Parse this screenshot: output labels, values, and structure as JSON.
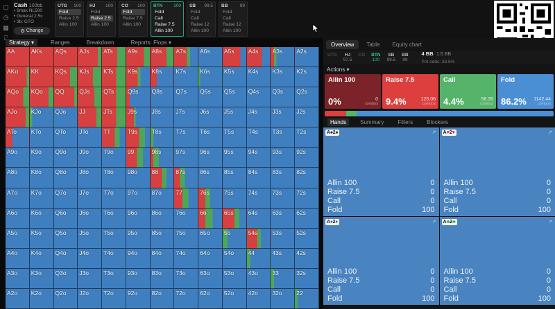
{
  "sidebar": {
    "icons": [
      {
        "name": "library-icon",
        "glyph": "▢"
      },
      {
        "name": "history-icon",
        "glyph": "◷"
      },
      {
        "name": "grid-icon",
        "glyph": "▦"
      },
      {
        "name": "practice-icon",
        "glyph": "⌸"
      },
      {
        "name": "text-cursor-icon",
        "glyph": "Ⅰ"
      }
    ]
  },
  "top_bar": {
    "settings": {
      "title": "Cash",
      "subtitle": "100bb",
      "lines": [
        "6max NL500",
        "General 2.5x",
        "3b: GTO"
      ],
      "change_label": "Change",
      "gear": "⚙"
    },
    "positions": [
      {
        "pos": "UTG",
        "stack": "100",
        "active": false,
        "actions": [
          {
            "label": "Fold",
            "sel": true
          },
          {
            "label": "Raise 2.5",
            "sel": false
          },
          {
            "label": "Allin 100",
            "sel": false
          }
        ]
      },
      {
        "pos": "HJ",
        "stack": "100",
        "active": false,
        "actions": [
          {
            "label": "Fold",
            "sel": false
          },
          {
            "label": "Raise 2.5",
            "sel": true
          },
          {
            "label": "Allin 100",
            "sel": false
          }
        ]
      },
      {
        "pos": "CO",
        "stack": "100",
        "active": false,
        "actions": [
          {
            "label": "Fold",
            "sel": true
          },
          {
            "label": "Raise 7.5",
            "sel": false
          },
          {
            "label": "Allin 100",
            "sel": false
          }
        ]
      },
      {
        "pos": "BTN",
        "stack": "100",
        "active": true,
        "actions": [
          {
            "label": "Fold",
            "sel": false
          },
          {
            "label": "Call",
            "sel": false
          },
          {
            "label": "Raise 7.5",
            "sel": false
          },
          {
            "label": "Allin 100",
            "sel": false
          }
        ]
      },
      {
        "pos": "SB",
        "stack": "99.5",
        "active": false,
        "actions": [
          {
            "label": "Fold",
            "sel": false
          },
          {
            "label": "Call",
            "sel": false
          },
          {
            "label": "Raise 12",
            "sel": false
          },
          {
            "label": "Allin 100",
            "sel": false
          }
        ]
      },
      {
        "pos": "BB",
        "stack": "99",
        "active": false,
        "actions": [
          {
            "label": "Fold",
            "sel": false
          },
          {
            "label": "Call",
            "sel": false
          },
          {
            "label": "Raise 12",
            "sel": false
          },
          {
            "label": "Allin 100",
            "sel": false
          }
        ]
      }
    ]
  },
  "left_tabs": [
    {
      "label": "Strategy ▾",
      "sel": true
    },
    {
      "label": "Ranges",
      "sel": false
    },
    {
      "label": "Breakdown",
      "sel": false
    },
    {
      "label": "Reports: Flops ▾",
      "sel": false
    }
  ],
  "matrix": {
    "colors": {
      "raise": "#d64040",
      "call": "#4ea758",
      "fold": "#3f7fc0"
    },
    "cells": [
      [
        [
          "AA",
          100,
          0
        ],
        [
          "AKs",
          100,
          0
        ],
        [
          "AQs",
          100,
          0
        ],
        [
          "AJs",
          85,
          15
        ],
        [
          "ATs",
          65,
          35
        ],
        [
          "A9s",
          75,
          25
        ],
        [
          "A8s",
          70,
          30
        ],
        [
          "A7s",
          55,
          12
        ],
        [
          "A6s",
          0,
          0
        ],
        [
          "A5s",
          75,
          0
        ],
        [
          "A4s",
          65,
          0
        ],
        [
          "A3s",
          15,
          10
        ],
        [
          "A2s",
          0,
          0
        ]
      ],
      [
        [
          "AKo",
          90,
          10
        ],
        [
          "KK",
          100,
          0
        ],
        [
          "KQs",
          70,
          30
        ],
        [
          "KJs",
          65,
          35
        ],
        [
          "KTs",
          60,
          40
        ],
        [
          "K9s",
          48,
          12
        ],
        [
          "K8s",
          28,
          0
        ],
        [
          "K7s",
          0,
          0
        ],
        [
          "K6s",
          0,
          8
        ],
        [
          "K5s",
          0,
          0
        ],
        [
          "K4s",
          0,
          0
        ],
        [
          "K3s",
          0,
          0
        ],
        [
          "K2s",
          0,
          0
        ]
      ],
      [
        [
          "AQo",
          75,
          25
        ],
        [
          "KQo",
          80,
          20
        ],
        [
          "QQ",
          88,
          12
        ],
        [
          "QJs",
          70,
          30
        ],
        [
          "QTs",
          60,
          40
        ],
        [
          "Q9s",
          15,
          0
        ],
        [
          "Q8s",
          0,
          0
        ],
        [
          "Q7s",
          0,
          0
        ],
        [
          "Q6s",
          0,
          0
        ],
        [
          "Q5s",
          0,
          0
        ],
        [
          "Q4s",
          0,
          0
        ],
        [
          "Q3s",
          0,
          0
        ],
        [
          "Q2s",
          0,
          0
        ]
      ],
      [
        [
          "AJo",
          85,
          15
        ],
        [
          "KJo",
          0,
          10
        ],
        [
          "QJo",
          0,
          0
        ],
        [
          "JJ",
          80,
          20
        ],
        [
          "JTs",
          60,
          40
        ],
        [
          "J9s",
          33,
          7
        ],
        [
          "J8s",
          0,
          0
        ],
        [
          "J7s",
          0,
          0
        ],
        [
          "J6s",
          0,
          0
        ],
        [
          "J5s",
          0,
          0
        ],
        [
          "J4s",
          0,
          0
        ],
        [
          "J3s",
          0,
          0
        ],
        [
          "J2s",
          0,
          0
        ]
      ],
      [
        [
          "ATo",
          30,
          0
        ],
        [
          "KTo",
          0,
          0
        ],
        [
          "QTo",
          0,
          0
        ],
        [
          "JTo",
          0,
          0
        ],
        [
          "TT",
          55,
          20
        ],
        [
          "T9s",
          55,
          25
        ],
        [
          "T8s",
          0,
          12
        ],
        [
          "T7s",
          0,
          0
        ],
        [
          "T6s",
          0,
          0
        ],
        [
          "T5s",
          0,
          0
        ],
        [
          "T4s",
          0,
          0
        ],
        [
          "T3s",
          0,
          0
        ],
        [
          "T2s",
          0,
          0
        ]
      ],
      [
        [
          "A9o",
          0,
          0
        ],
        [
          "K9o",
          0,
          0
        ],
        [
          "Q9o",
          0,
          0
        ],
        [
          "J9o",
          0,
          0
        ],
        [
          "T9o",
          0,
          0
        ],
        [
          "99",
          45,
          25
        ],
        [
          "98s",
          12,
          25
        ],
        [
          "97s",
          0,
          0
        ],
        [
          "96s",
          0,
          0
        ],
        [
          "95s",
          0,
          0
        ],
        [
          "94s",
          0,
          0
        ],
        [
          "93s",
          0,
          0
        ],
        [
          "92s",
          0,
          0
        ]
      ],
      [
        [
          "A8o",
          0,
          0
        ],
        [
          "K8o",
          0,
          0
        ],
        [
          "Q8o",
          0,
          0
        ],
        [
          "J8o",
          0,
          0
        ],
        [
          "T8o",
          0,
          0
        ],
        [
          "98o",
          0,
          0
        ],
        [
          "88",
          50,
          20
        ],
        [
          "87s",
          25,
          20
        ],
        [
          "86s",
          0,
          0
        ],
        [
          "85s",
          0,
          0
        ],
        [
          "84s",
          0,
          0
        ],
        [
          "83s",
          0,
          0
        ],
        [
          "82s",
          0,
          0
        ]
      ],
      [
        [
          "A7o",
          0,
          0
        ],
        [
          "K7o",
          0,
          0
        ],
        [
          "Q7o",
          0,
          0
        ],
        [
          "J7o",
          0,
          0
        ],
        [
          "T7o",
          0,
          0
        ],
        [
          "97o",
          0,
          0
        ],
        [
          "87o",
          0,
          0
        ],
        [
          "77",
          35,
          25
        ],
        [
          "76s",
          30,
          20
        ],
        [
          "75s",
          0,
          0
        ],
        [
          "74s",
          0,
          0
        ],
        [
          "73s",
          0,
          0
        ],
        [
          "72s",
          0,
          0
        ]
      ],
      [
        [
          "A6o",
          0,
          0
        ],
        [
          "K6o",
          0,
          0
        ],
        [
          "Q6o",
          0,
          0
        ],
        [
          "J6o",
          0,
          0
        ],
        [
          "T6o",
          0,
          0
        ],
        [
          "96o",
          0,
          0
        ],
        [
          "86o",
          0,
          0
        ],
        [
          "76o",
          0,
          0
        ],
        [
          "66",
          30,
          30
        ],
        [
          "65s",
          50,
          20
        ],
        [
          "64s",
          0,
          0
        ],
        [
          "63s",
          0,
          0
        ],
        [
          "62s",
          0,
          0
        ]
      ],
      [
        [
          "A5o",
          0,
          0
        ],
        [
          "K5o",
          0,
          0
        ],
        [
          "Q5o",
          0,
          0
        ],
        [
          "J5o",
          0,
          0
        ],
        [
          "T5o",
          0,
          0
        ],
        [
          "95o",
          0,
          0
        ],
        [
          "85o",
          0,
          0
        ],
        [
          "75o",
          0,
          0
        ],
        [
          "65o",
          0,
          0
        ],
        [
          "55",
          0,
          20
        ],
        [
          "54s",
          45,
          15
        ],
        [
          "53s",
          0,
          0
        ],
        [
          "52s",
          0,
          0
        ]
      ],
      [
        [
          "A4o",
          0,
          0
        ],
        [
          "K4o",
          0,
          0
        ],
        [
          "Q4o",
          0,
          0
        ],
        [
          "J4o",
          0,
          0
        ],
        [
          "T4o",
          0,
          0
        ],
        [
          "94o",
          0,
          0
        ],
        [
          "84o",
          0,
          0
        ],
        [
          "74o",
          0,
          0
        ],
        [
          "64o",
          0,
          0
        ],
        [
          "54o",
          0,
          0
        ],
        [
          "44",
          0,
          15
        ],
        [
          "43s",
          0,
          0
        ],
        [
          "42s",
          0,
          0
        ]
      ],
      [
        [
          "A3o",
          0,
          0
        ],
        [
          "K3o",
          0,
          0
        ],
        [
          "Q3o",
          0,
          0
        ],
        [
          "J3o",
          0,
          0
        ],
        [
          "T3o",
          0,
          0
        ],
        [
          "93o",
          0,
          0
        ],
        [
          "83o",
          0,
          0
        ],
        [
          "73o",
          0,
          0
        ],
        [
          "63o",
          0,
          0
        ],
        [
          "53o",
          0,
          0
        ],
        [
          "43o",
          0,
          0
        ],
        [
          "33",
          0,
          15
        ],
        [
          "32s",
          0,
          0
        ]
      ],
      [
        [
          "A2o",
          0,
          0
        ],
        [
          "K2o",
          0,
          0
        ],
        [
          "Q2o",
          0,
          0
        ],
        [
          "J2o",
          0,
          0
        ],
        [
          "T2o",
          0,
          0
        ],
        [
          "92o",
          0,
          0
        ],
        [
          "82o",
          0,
          0
        ],
        [
          "72o",
          0,
          0
        ],
        [
          "62o",
          0,
          0
        ],
        [
          "52o",
          0,
          0
        ],
        [
          "42o",
          0,
          0
        ],
        [
          "32o",
          0,
          0
        ],
        [
          "22",
          0,
          12
        ]
      ]
    ]
  },
  "right": {
    "tabs": [
      {
        "label": "Overview",
        "sel": true
      },
      {
        "label": "Table",
        "sel": false
      },
      {
        "label": "Equity chart",
        "sel": false
      }
    ],
    "positions": [
      {
        "pos": "UTG",
        "value": "",
        "dim": true,
        "on": false
      },
      {
        "pos": "HJ",
        "value": "97.5",
        "dim": false,
        "on": false
      },
      {
        "pos": "CO",
        "value": "",
        "dim": true,
        "on": false
      },
      {
        "pos": "BTN",
        "value": "100",
        "dim": false,
        "on": true
      },
      {
        "pos": "SB",
        "value": "99.5",
        "dim": false,
        "on": false
      },
      {
        "pos": "BB",
        "value": "99",
        "dim": false,
        "on": false
      }
    ],
    "pot": {
      "main": "4 BB",
      "sub": "1.5 BB",
      "odds_label": "Pot odds:",
      "odds": "38.5%"
    },
    "actions_label": "Actions ▾",
    "combos_suffix": "combos",
    "action_cards": [
      {
        "label": "Allin 100",
        "pct": "0%",
        "combos": "0",
        "color": "#7b2328"
      },
      {
        "label": "Raise 7.5",
        "pct": "9.4%",
        "combos": "125.06",
        "color": "#dd3e3e"
      },
      {
        "label": "Call",
        "pct": "4.4%",
        "combos": "58.35",
        "color": "#55b36a"
      },
      {
        "label": "Fold",
        "pct": "86.2%",
        "combos": "1142.44",
        "color": "#4a8fd4"
      }
    ],
    "distribution": [
      {
        "color": "#dd3e3e",
        "pct": 9.4
      },
      {
        "color": "#55b36a",
        "pct": 4.4
      },
      {
        "color": "#4a8fd4",
        "pct": 86.2
      }
    ],
    "hands_tabs": [
      {
        "label": "Hands",
        "sel": true
      },
      {
        "label": "Summary",
        "sel": false
      },
      {
        "label": "Filters",
        "sel": false
      },
      {
        "label": "Blockers",
        "sel": false
      }
    ],
    "hand_panels": [
      {
        "combo": [
          {
            "rank": "A",
            "suit": "♠",
            "color": "#111111"
          },
          {
            "rank": "2",
            "suit": "♠",
            "color": "#111111"
          }
        ],
        "rows": [
          {
            "label": "Allin 100",
            "value": "0"
          },
          {
            "label": "Raise 7.5",
            "value": "0"
          },
          {
            "label": "Call",
            "value": "0"
          },
          {
            "label": "Fold",
            "value": "100"
          }
        ]
      },
      {
        "combo": [
          {
            "rank": "A",
            "suit": "♥",
            "color": "#c8201f"
          },
          {
            "rank": "2",
            "suit": "♥",
            "color": "#c8201f"
          }
        ],
        "rows": [
          {
            "label": "Allin 100",
            "value": "0"
          },
          {
            "label": "Raise 7.5",
            "value": "0"
          },
          {
            "label": "Call",
            "value": "0"
          },
          {
            "label": "Fold",
            "value": "100"
          }
        ]
      },
      {
        "combo": [
          {
            "rank": "A",
            "suit": "♦",
            "color": "#1f5fc8"
          },
          {
            "rank": "2",
            "suit": "♦",
            "color": "#1f5fc8"
          }
        ],
        "rows": [
          {
            "label": "Allin 100",
            "value": "0"
          },
          {
            "label": "Raise 7.5",
            "value": "0"
          },
          {
            "label": "Call",
            "value": "0"
          },
          {
            "label": "Fold",
            "value": "100"
          }
        ]
      },
      {
        "combo": [
          {
            "rank": "A",
            "suit": "♣",
            "color": "#1f9e45"
          },
          {
            "rank": "2",
            "suit": "♣",
            "color": "#1f9e45"
          }
        ],
        "rows": [
          {
            "label": "Allin 100",
            "value": "0"
          },
          {
            "label": "Raise 7.5",
            "value": "0"
          },
          {
            "label": "Call",
            "value": "0"
          },
          {
            "label": "Fold",
            "value": "100"
          }
        ]
      }
    ]
  }
}
